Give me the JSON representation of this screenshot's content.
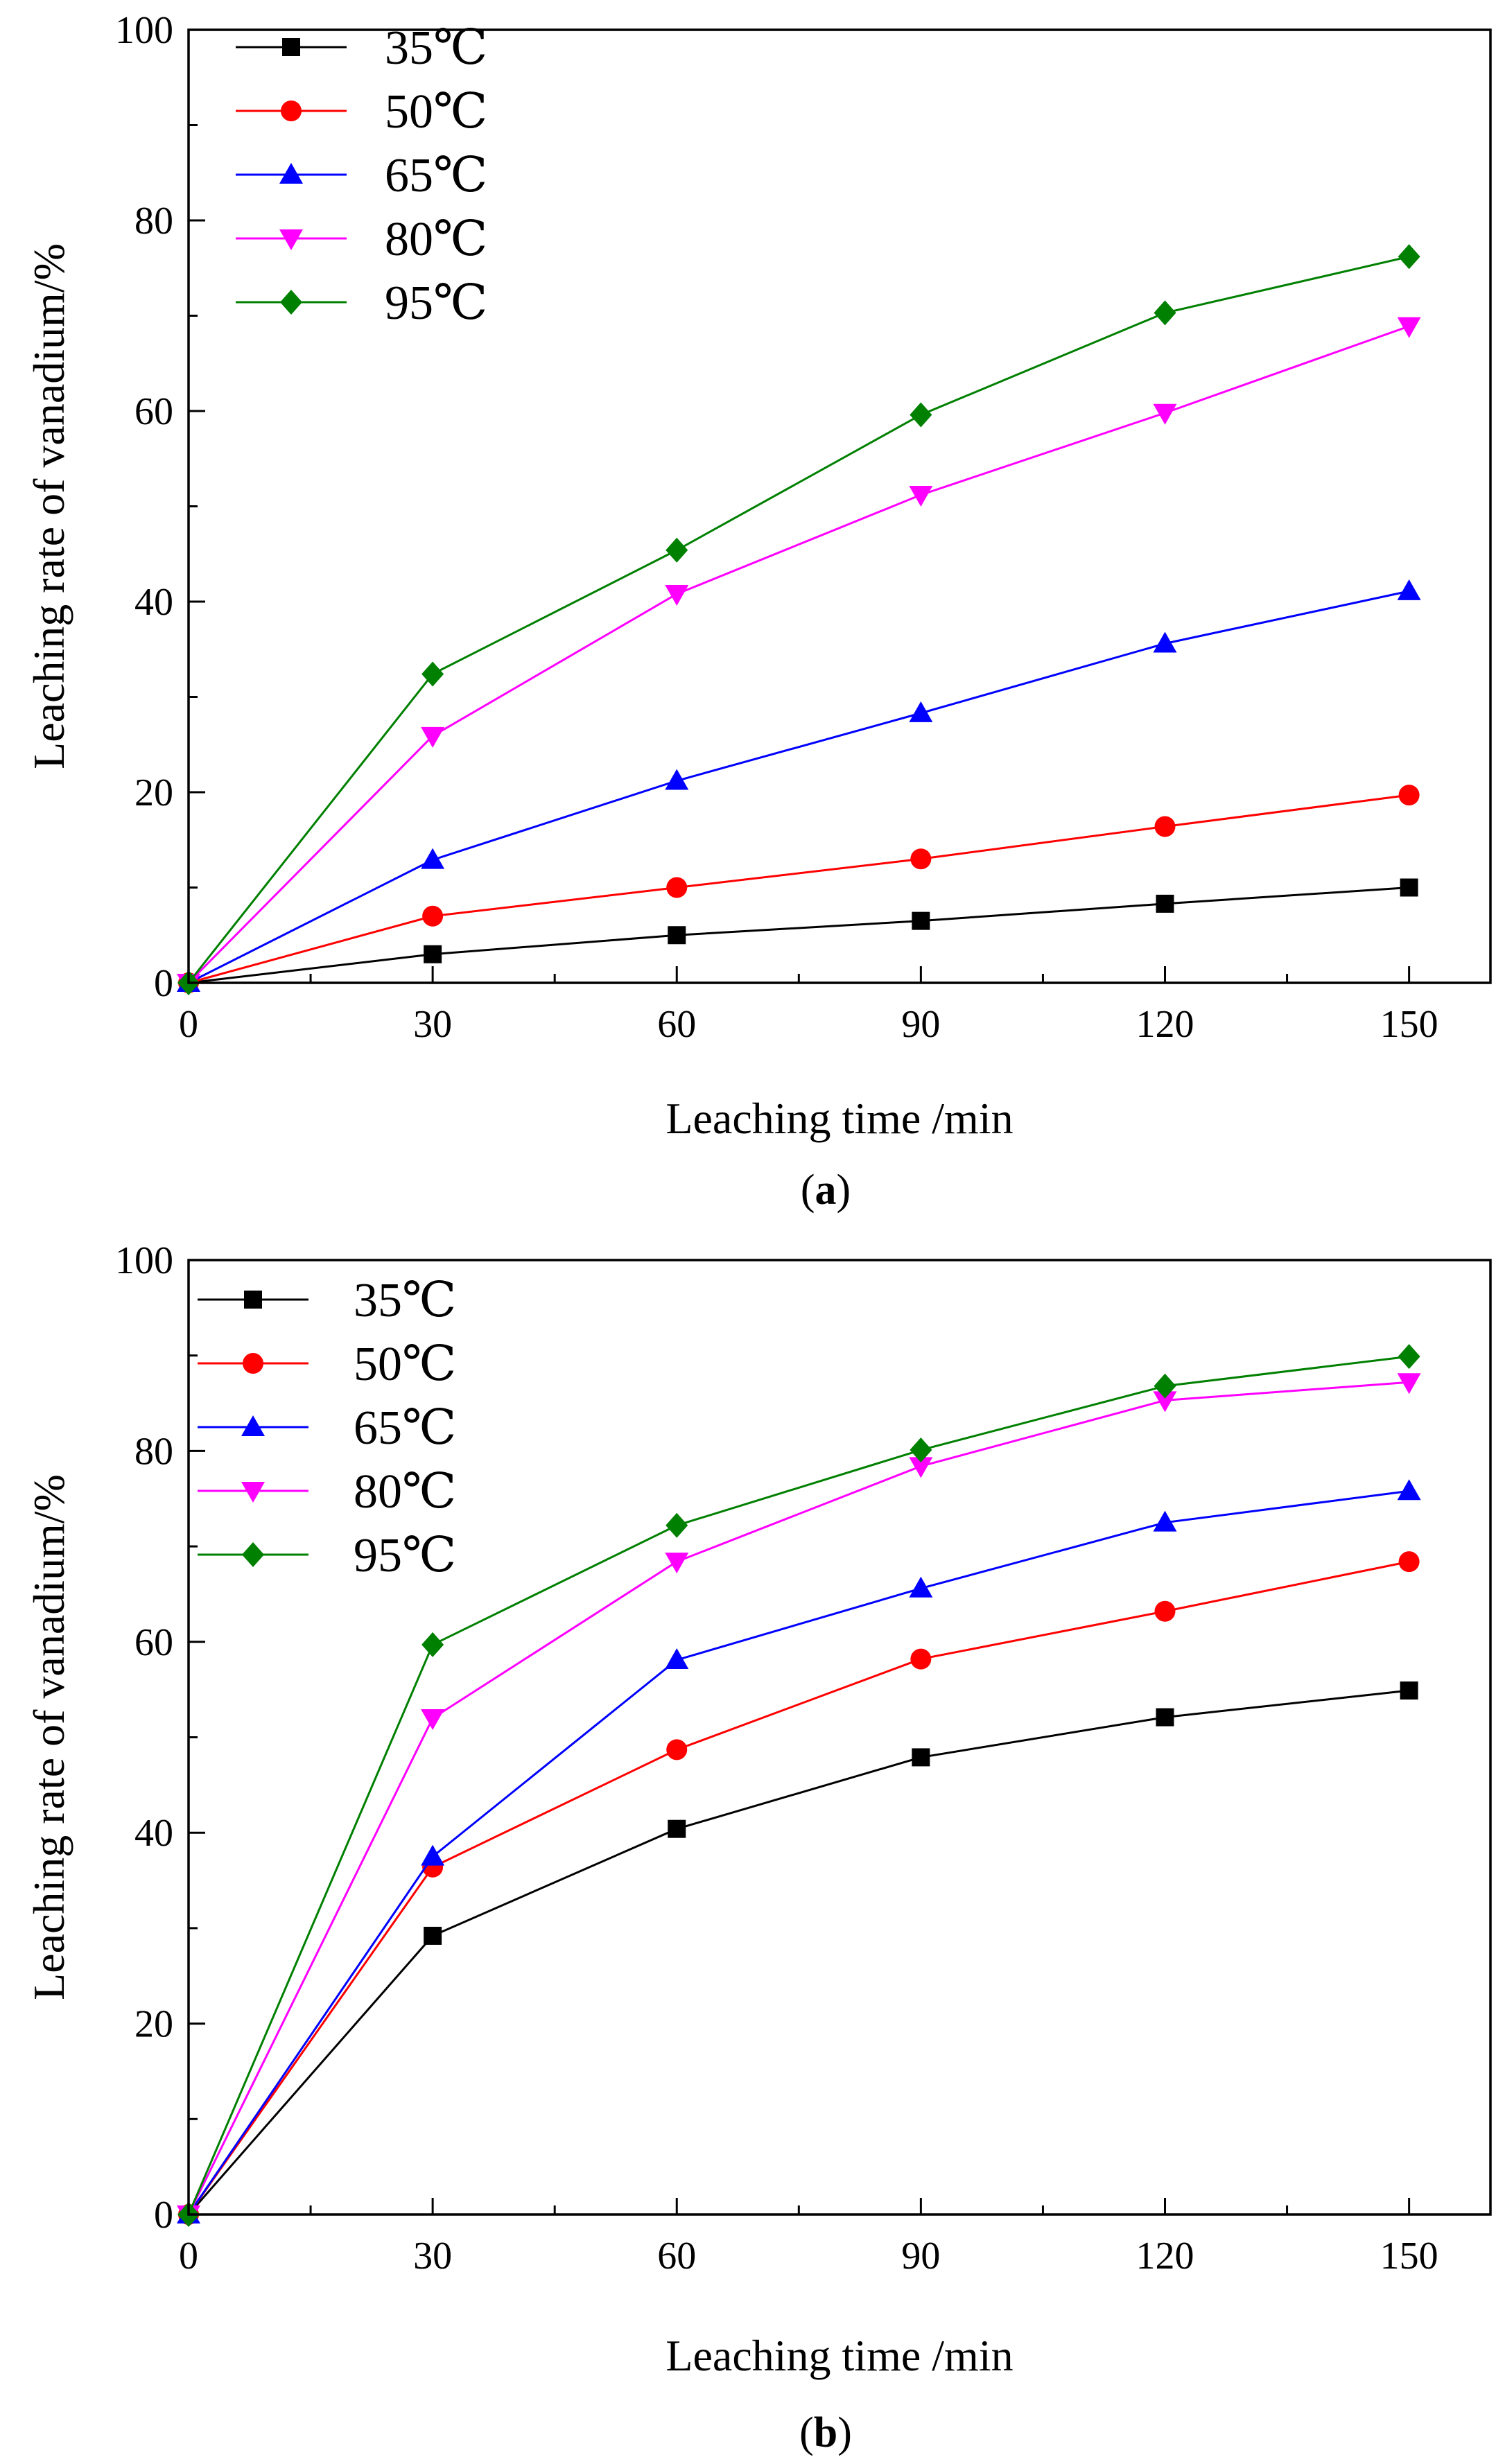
{
  "chart_data": [
    {
      "type": "line",
      "panel_label_open": "(",
      "panel_label": "a",
      "panel_label_close": ")",
      "xlabel": "Leaching time /min",
      "ylabel": "Leaching rate of vanadium/%",
      "xlim": [
        0,
        160
      ],
      "ylim": [
        0,
        100
      ],
      "x_ticks": [
        0,
        30,
        60,
        90,
        120,
        150
      ],
      "y_ticks": [
        0,
        20,
        40,
        60,
        80,
        100
      ],
      "legend_position": "top-left",
      "x": [
        0,
        30,
        60,
        90,
        120,
        150
      ],
      "series": [
        {
          "name": "35℃",
          "color": "#000000",
          "marker": "square",
          "values": [
            0,
            3.0,
            5.0,
            6.5,
            8.3,
            10.0
          ]
        },
        {
          "name": "50℃",
          "color": "#ff0000",
          "marker": "circle",
          "values": [
            0,
            7.0,
            10.0,
            13.0,
            16.4,
            19.7
          ]
        },
        {
          "name": "65℃",
          "color": "#0000ff",
          "marker": "triangle-up",
          "values": [
            0,
            12.9,
            21.2,
            28.3,
            35.6,
            41.1
          ]
        },
        {
          "name": "80℃",
          "color": "#ff00ff",
          "marker": "triangle-down",
          "values": [
            0,
            25.9,
            40.8,
            51.2,
            59.8,
            68.9
          ]
        },
        {
          "name": "95℃",
          "color": "#008000",
          "marker": "diamond",
          "values": [
            0,
            32.4,
            45.4,
            59.6,
            70.3,
            76.2
          ]
        }
      ]
    },
    {
      "type": "line",
      "panel_label_open": "(",
      "panel_label": "b",
      "panel_label_close": ")",
      "xlabel": "Leaching time /min",
      "ylabel": "Leaching rate of vanadium/%",
      "xlim": [
        0,
        160
      ],
      "ylim": [
        0,
        100
      ],
      "x_ticks": [
        0,
        30,
        60,
        90,
        120,
        150
      ],
      "y_ticks": [
        0,
        20,
        40,
        60,
        80,
        100
      ],
      "legend_position": "top-left",
      "x": [
        0,
        30,
        60,
        90,
        120,
        150
      ],
      "series": [
        {
          "name": "35℃",
          "color": "#000000",
          "marker": "square",
          "values": [
            0,
            29.2,
            40.4,
            47.9,
            52.1,
            54.9
          ]
        },
        {
          "name": "50℃",
          "color": "#ff0000",
          "marker": "circle",
          "values": [
            0,
            36.4,
            48.7,
            58.2,
            63.2,
            68.4
          ]
        },
        {
          "name": "65℃",
          "color": "#0000ff",
          "marker": "triangle-up",
          "values": [
            0,
            37.5,
            58.1,
            65.6,
            72.5,
            75.8
          ]
        },
        {
          "name": "80℃",
          "color": "#ff00ff",
          "marker": "triangle-down",
          "values": [
            0,
            52.0,
            68.4,
            78.4,
            85.3,
            87.2
          ]
        },
        {
          "name": "95℃",
          "color": "#008000",
          "marker": "diamond",
          "values": [
            0,
            59.7,
            72.2,
            80.1,
            86.8,
            89.9
          ]
        }
      ]
    }
  ]
}
